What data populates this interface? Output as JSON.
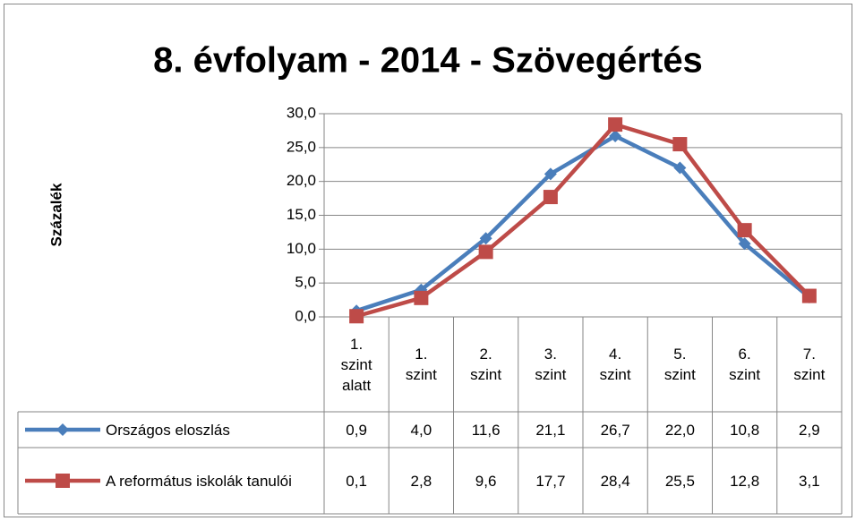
{
  "chart_data": {
    "type": "line",
    "title": "8. évfolyam - 2014 - Szövegértés",
    "y_label": "Százalék",
    "categories": [
      "1. szint alatt",
      "1. szint",
      "2. szint",
      "3. szint",
      "4. szint",
      "5. szint",
      "6. szint",
      "7. szint"
    ],
    "series": [
      {
        "name": "Országos eloszlás",
        "color": "#4a7ebb",
        "marker": "diamond",
        "values": [
          0.9,
          4.0,
          11.6,
          21.1,
          26.7,
          22.0,
          10.8,
          2.9
        ],
        "value_labels": [
          "0,9",
          "4,0",
          "11,6",
          "21,1",
          "26,7",
          "22,0",
          "10,8",
          "2,9"
        ]
      },
      {
        "name": "A református iskolák tanulói",
        "color": "#be4b48",
        "marker": "square",
        "values": [
          0.1,
          2.8,
          9.6,
          17.7,
          28.4,
          25.5,
          12.8,
          3.1
        ],
        "value_labels": [
          "0,1",
          "2,8",
          "9,6",
          "17,7",
          "28,4",
          "25,5",
          "12,8",
          "3,1"
        ]
      }
    ],
    "ylim": [
      0,
      30
    ],
    "yticks": [
      {
        "value": 0,
        "label": "0,0"
      },
      {
        "value": 5,
        "label": "5,0"
      },
      {
        "value": 10,
        "label": "10,0"
      },
      {
        "value": 15,
        "label": "15,0"
      },
      {
        "value": 20,
        "label": "20,0"
      },
      {
        "value": 25,
        "label": "25,0"
      },
      {
        "value": 30,
        "label": "30,0"
      }
    ],
    "grid": true
  }
}
